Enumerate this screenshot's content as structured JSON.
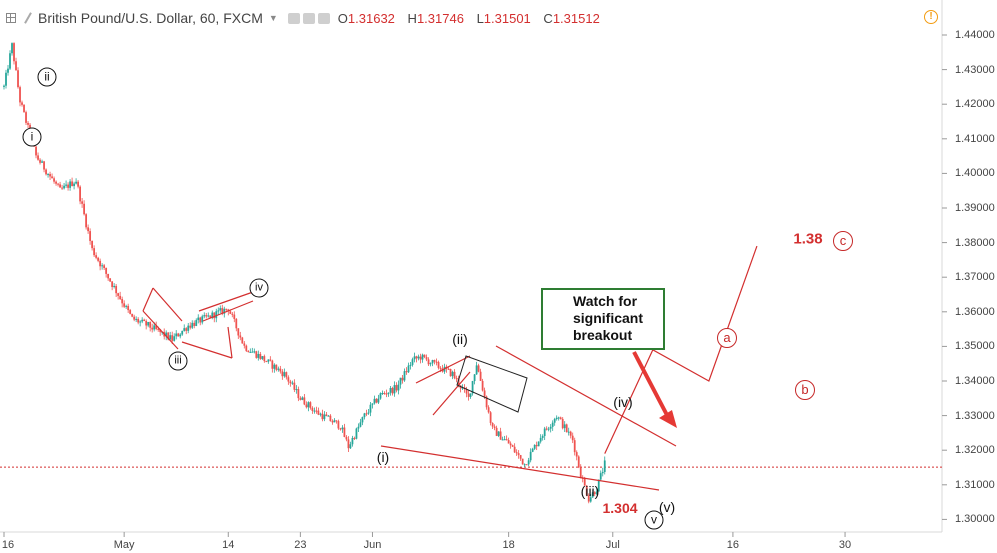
{
  "header": {
    "symbol": "British Pound/U.S. Dollar, 60, FXCM",
    "ohlc": [
      {
        "k": "O",
        "v": "1.31632"
      },
      {
        "k": "H",
        "v": "1.31746"
      },
      {
        "k": "L",
        "v": "1.31501"
      },
      {
        "k": "C",
        "v": "1.31512"
      }
    ],
    "alert_icon": "!"
  },
  "colors": {
    "up": "#26a69a",
    "down": "#ef5350",
    "wave_line": "#d32f2f",
    "box_border": "#2e7d32",
    "price_line": "#d32f2f"
  },
  "chart_data": {
    "type": "candlestick",
    "symbol": "GBP/USD",
    "interval": "60",
    "y_ticks": [
      "1.44000",
      "1.43000",
      "1.42000",
      "1.41000",
      "1.40000",
      "1.39000",
      "1.38000",
      "1.37000",
      "1.36000",
      "1.35000",
      "1.34000",
      "1.33000",
      "1.32000",
      "1.31000",
      "1.30000"
    ],
    "x_ticks": [
      "16",
      "May",
      "14",
      "23",
      "Jun",
      "18",
      "Jul",
      "16",
      "30"
    ],
    "current_price": 1.31512,
    "ylim": [
      1.2965,
      1.4475
    ],
    "price_path": [
      [
        "Apr 16",
        1.425
      ],
      [
        "Apr 17",
        1.437
      ],
      [
        "Apr 18",
        1.421
      ],
      [
        "Apr 20",
        1.405
      ],
      [
        "Apr 23",
        1.395
      ],
      [
        "Apr 25",
        1.398
      ],
      [
        "Apr 27",
        1.378
      ],
      [
        "Apr 30",
        1.366
      ],
      [
        "May 2",
        1.358
      ],
      [
        "May 4",
        1.356
      ],
      [
        "May 7",
        1.352
      ],
      [
        "May 9",
        1.356
      ],
      [
        "May 11",
        1.358
      ],
      [
        "May 14",
        1.361
      ],
      [
        "May 16",
        1.35
      ],
      [
        "May 18",
        1.347
      ],
      [
        "May 21",
        1.342
      ],
      [
        "May 23",
        1.335
      ],
      [
        "May 25",
        1.331
      ],
      [
        "May 28",
        1.327
      ],
      [
        "May 29",
        1.321
      ],
      [
        "May 31",
        1.33
      ],
      [
        "Jun 2",
        1.336
      ],
      [
        "Jun 4",
        1.338
      ],
      [
        "Jun 6",
        1.346
      ],
      [
        "Jun 7",
        1.347
      ],
      [
        "Jun 11",
        1.342
      ],
      [
        "Jun 13",
        1.335
      ],
      [
        "Jun 14",
        1.345
      ],
      [
        "Jun 16",
        1.326
      ],
      [
        "Jun 18",
        1.322
      ],
      [
        "Jun 20",
        1.316
      ],
      [
        "Jun 22",
        1.324
      ],
      [
        "Jun 24",
        1.33
      ],
      [
        "Jun 26",
        1.323
      ],
      [
        "Jun 27",
        1.313
      ],
      [
        "Jun 28",
        1.306
      ],
      [
        "Jun 29",
        1.309
      ],
      [
        "Jun 30",
        1.316
      ]
    ],
    "projection_path": [
      [
        "Jun 30",
        1.319
      ],
      [
        "Jul 6",
        1.349
      ],
      [
        "Jul 13",
        1.34
      ],
      [
        "Jul 19",
        1.379
      ]
    ]
  },
  "annotations": {
    "waves": [
      {
        "label": "ii",
        "circled": true
      },
      {
        "label": "i",
        "circled": true
      },
      {
        "label": "iii",
        "circled": true
      },
      {
        "label": "iv",
        "circled": true
      },
      {
        "label": "(i)",
        "circled": false
      },
      {
        "label": "(ii)",
        "circled": false
      },
      {
        "label": "(iii)",
        "circled": false
      },
      {
        "label": "(iv)",
        "circled": false
      },
      {
        "label": "(v)",
        "circled": false
      },
      {
        "label": "v",
        "circled": true
      }
    ],
    "targets": [
      {
        "label": "a"
      },
      {
        "label": "b"
      },
      {
        "label": "c"
      }
    ],
    "low_value": "1.304",
    "target_value": "1.38",
    "watch_box": "Watch for significant breakout"
  }
}
